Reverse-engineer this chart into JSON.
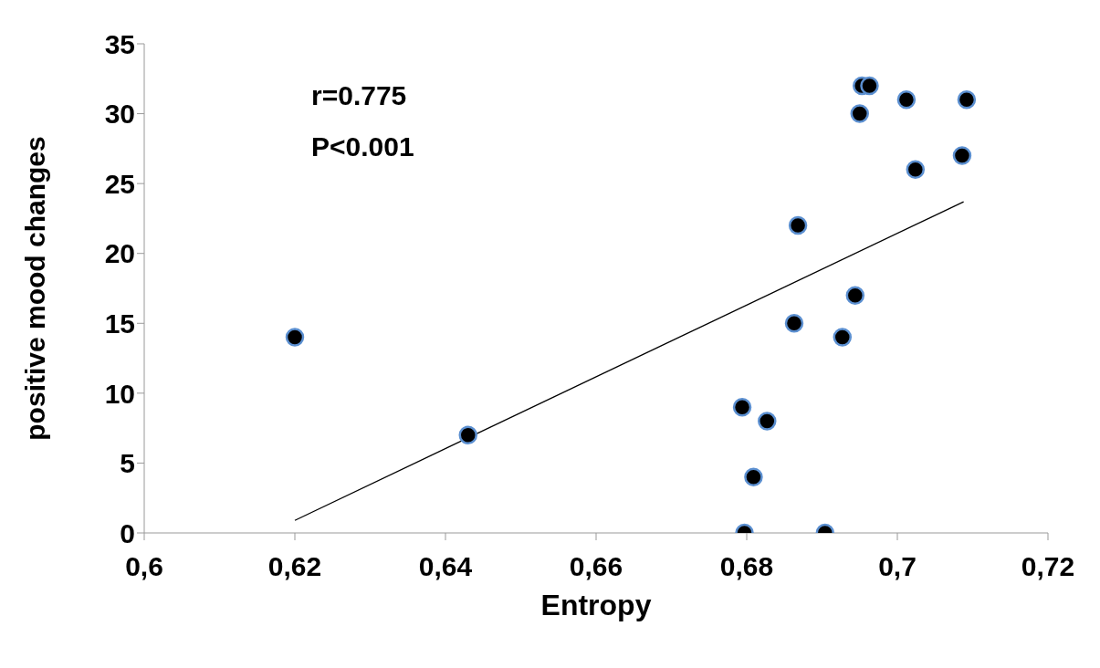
{
  "chart_data": {
    "type": "scatter",
    "xlabel": "Entropy",
    "ylabel": "positive mood changes",
    "annotations": [
      "r=0.775",
      "P<0.001"
    ],
    "xlim": [
      0.6,
      0.72
    ],
    "xticks": [
      {
        "value": 0.6,
        "label": "0,6"
      },
      {
        "value": 0.62,
        "label": "0,62"
      },
      {
        "value": 0.64,
        "label": "0,64"
      },
      {
        "value": 0.66,
        "label": "0,66"
      },
      {
        "value": 0.68,
        "label": "0,68"
      },
      {
        "value": 0.7,
        "label": "0,7"
      },
      {
        "value": 0.72,
        "label": "0,72"
      }
    ],
    "ylim": [
      0,
      35
    ],
    "yticks": [
      0,
      5,
      10,
      15,
      20,
      25,
      30,
      35
    ],
    "grid": false,
    "legend": false,
    "marker": "circle",
    "series": [
      {
        "color": "#000000",
        "x": [
          0.62,
          0.643,
          0.6794,
          0.6827,
          0.6809,
          0.6797,
          0.6904,
          0.6863,
          0.6868,
          0.6927,
          0.6944,
          0.695,
          0.6953,
          0.6963,
          0.7012,
          0.7024,
          0.7086,
          0.7092
        ],
        "values": [
          14,
          7,
          9,
          8,
          4,
          0,
          0,
          15,
          22,
          14,
          17,
          30,
          32,
          32,
          31,
          26,
          27,
          31
        ]
      },
      {
        "type": "line",
        "color": "#000000",
        "line_style": "solid",
        "marker": "none",
        "x": [
          0.62,
          0.7088
        ],
        "values": [
          0.9,
          23.7
        ]
      }
    ]
  }
}
